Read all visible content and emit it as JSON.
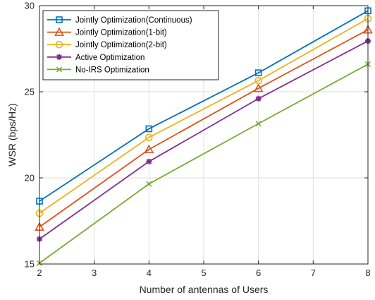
{
  "chart_data": {
    "type": "line",
    "title": "",
    "xlabel": "Number of antennas of Users",
    "ylabel": "WSR (bps/Hz)",
    "xlim": [
      2,
      8
    ],
    "ylim": [
      15,
      30
    ],
    "xticks": [
      "2",
      "3",
      "4",
      "5",
      "6",
      "7",
      "8"
    ],
    "yticks": [
      "15",
      "20",
      "25",
      "30"
    ],
    "x": [
      2,
      4,
      6,
      8
    ],
    "grid": true,
    "legend_position": "top-left",
    "series": [
      {
        "name": "Jointly Optimization(Continuous)",
        "values": [
          18.65,
          22.85,
          26.1,
          29.7
        ],
        "color": "#0072BD",
        "marker": "square"
      },
      {
        "name": "Jointly Optimization(1-bit)",
        "values": [
          17.15,
          21.65,
          25.2,
          28.6
        ],
        "color": "#D95319",
        "marker": "triangle"
      },
      {
        "name": "Jointly Optimization(2-bit)",
        "values": [
          17.95,
          22.35,
          25.65,
          29.25
        ],
        "color": "#EDB120",
        "marker": "circle"
      },
      {
        "name": "Active Optimization",
        "values": [
          16.45,
          20.95,
          24.6,
          27.95
        ],
        "color": "#7E2F8E",
        "marker": "asterisk"
      },
      {
        "name": "No-IRS Optimization",
        "values": [
          15.05,
          19.65,
          23.15,
          26.6
        ],
        "color": "#77AC30",
        "marker": "x"
      }
    ]
  }
}
